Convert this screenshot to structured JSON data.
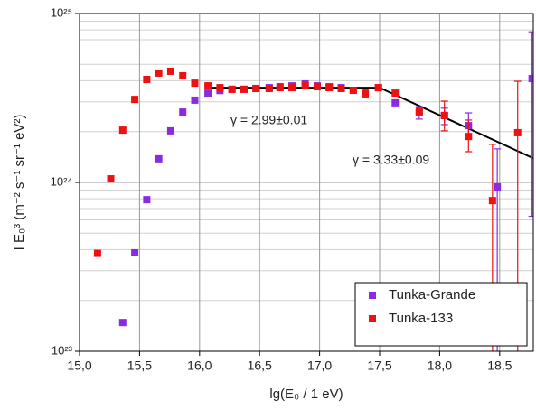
{
  "chart_data": {
    "type": "scatter",
    "xlabel": "lg(E₀ / 1 eV)",
    "ylabel": "I E₀³ (m⁻² s⁻¹ sr⁻¹ eV²)",
    "xlim": [
      15.0,
      18.78
    ],
    "ylim": [
      1e+23,
      1e+25
    ],
    "ylog": true,
    "grid": true,
    "legend": "lower right",
    "xticks": [
      {
        "value": 15.0,
        "label": "15,0"
      },
      {
        "value": 15.5,
        "label": "15,5"
      },
      {
        "value": 16.0,
        "label": "16,0"
      },
      {
        "value": 16.5,
        "label": "16,5"
      },
      {
        "value": 17.0,
        "label": "17,0"
      },
      {
        "value": 17.5,
        "label": "17,5"
      },
      {
        "value": 18.0,
        "label": "18,0"
      },
      {
        "value": 18.5,
        "label": "18,5"
      }
    ],
    "yticks": [
      {
        "value": 1e+23,
        "label": "10²³"
      },
      {
        "value": 1e+24,
        "label": "10²⁴"
      },
      {
        "value": 1e+25,
        "label": "10²⁵"
      }
    ],
    "series": [
      {
        "name": "Tunka-Grande",
        "color": "#8a2be2",
        "x": [
          15.36,
          15.46,
          15.56,
          15.66,
          15.76,
          15.86,
          15.96,
          16.07,
          16.17,
          16.27,
          16.37,
          16.47,
          16.58,
          16.67,
          16.77,
          16.88,
          16.98,
          17.08,
          17.18,
          17.28,
          17.38,
          17.49,
          17.63,
          17.83,
          18.04,
          18.24,
          18.48,
          18.77
        ],
        "values": [
          1.48e+23,
          3.83e+23,
          7.9e+23,
          1.38e+24,
          2.02e+24,
          2.61e+24,
          3.07e+24,
          3.38e+24,
          3.5e+24,
          3.56e+24,
          3.56e+24,
          3.6e+24,
          3.64e+24,
          3.69e+24,
          3.73e+24,
          3.83e+24,
          3.73e+24,
          3.69e+24,
          3.64e+24,
          3.51e+24,
          3.34e+24,
          3.64e+24,
          2.96e+24,
          2.58e+24,
          2.49e+24,
          2.17e+24,
          9.4e+23,
          4.12e+24
        ],
        "err_low": [
          null,
          null,
          null,
          null,
          null,
          null,
          null,
          null,
          null,
          null,
          null,
          null,
          null,
          null,
          null,
          null,
          null,
          null,
          null,
          null,
          null,
          null,
          null,
          2.37e+24,
          2.2e+24,
          1.9e+24,
          5e+22,
          6.3e+23
        ],
        "err_high": [
          null,
          null,
          null,
          null,
          null,
          null,
          null,
          null,
          null,
          null,
          null,
          null,
          null,
          null,
          null,
          null,
          null,
          null,
          null,
          null,
          null,
          null,
          null,
          2.81e+24,
          2.75e+24,
          2.58e+24,
          1.58e+24,
          7.8e+24
        ]
      },
      {
        "name": "Tunka-133",
        "color": "#ee1111",
        "x": [
          15.15,
          15.26,
          15.36,
          15.46,
          15.56,
          15.66,
          15.76,
          15.86,
          15.96,
          16.07,
          16.17,
          16.27,
          16.37,
          16.47,
          16.58,
          16.67,
          16.77,
          16.88,
          16.98,
          17.08,
          17.18,
          17.28,
          17.38,
          17.49,
          17.63,
          17.83,
          18.04,
          18.24,
          18.44,
          18.65
        ],
        "values": [
          3.8e+23,
          1.05e+24,
          2.04e+24,
          3.1e+24,
          4.07e+24,
          4.44e+24,
          4.55e+24,
          4.28e+24,
          3.87e+24,
          3.73e+24,
          3.64e+24,
          3.56e+24,
          3.56e+24,
          3.6e+24,
          3.6e+24,
          3.64e+24,
          3.64e+24,
          3.73e+24,
          3.69e+24,
          3.64e+24,
          3.6e+24,
          3.51e+24,
          3.38e+24,
          3.64e+24,
          3.38e+24,
          2.64e+24,
          2.49e+24,
          1.87e+24,
          7.8e+23,
          1.97e+24
        ],
        "err_low": [
          null,
          null,
          null,
          null,
          null,
          null,
          null,
          null,
          null,
          null,
          null,
          null,
          null,
          null,
          null,
          null,
          null,
          null,
          null,
          null,
          null,
          null,
          null,
          null,
          null,
          null,
          2.02e+24,
          1.52e+24,
          5e+22,
          5e+22
        ],
        "err_high": [
          null,
          null,
          null,
          null,
          null,
          null,
          null,
          null,
          null,
          null,
          null,
          null,
          null,
          null,
          null,
          null,
          null,
          null,
          null,
          null,
          null,
          null,
          null,
          null,
          null,
          null,
          3.03e+24,
          2.34e+24,
          1.68e+24,
          3.97e+24
        ]
      }
    ],
    "fit": {
      "color": "#000000",
      "x": [
        16.05,
        17.5,
        18.78
      ],
      "values": [
        3.64e+24,
        3.64e+24,
        1.39e+24
      ]
    },
    "annotations": [
      "γ = 2.99±0.01",
      "γ = 3.33±0.09"
    ]
  }
}
